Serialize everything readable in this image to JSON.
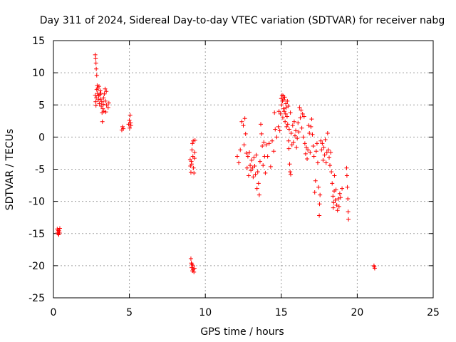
{
  "chart_data": {
    "type": "scatter",
    "title": "Day 311 of 2024, Sidereal Day-to-day VTEC variation (SDTVAR) for receiver nabg",
    "xlabel": "GPS time / hours",
    "ylabel": "SDTVAR / TECUs",
    "xlim": [
      0,
      25
    ],
    "ylim": [
      -25,
      15
    ],
    "xticks": [
      0,
      5,
      10,
      15,
      20,
      25
    ],
    "yticks": [
      -25,
      -20,
      -15,
      -10,
      -5,
      0,
      5,
      10,
      15
    ],
    "xtick_labels": [
      "0",
      "5",
      "10",
      "15",
      "20",
      "25"
    ],
    "ytick_labels": [
      "-25",
      "-20",
      "-15",
      "-10",
      "-5",
      "0",
      "5",
      "10",
      "15"
    ],
    "grid": true,
    "marker": "+",
    "color": "#ff0000",
    "series": [
      {
        "name": "SDTVAR",
        "points": [
          [
            0.25,
            -14.3
          ],
          [
            0.27,
            -14.8
          ],
          [
            0.3,
            -15.0
          ],
          [
            0.32,
            -14.5
          ],
          [
            0.35,
            -15.2
          ],
          [
            0.38,
            -14.6
          ],
          [
            0.4,
            -14.9
          ],
          [
            0.42,
            -14.2
          ],
          [
            2.75,
            12.8
          ],
          [
            2.78,
            12.2
          ],
          [
            2.8,
            11.5
          ],
          [
            2.82,
            10.6
          ],
          [
            2.85,
            9.6
          ],
          [
            2.75,
            6.5
          ],
          [
            2.78,
            5.5
          ],
          [
            2.8,
            4.9
          ],
          [
            2.82,
            6.1
          ],
          [
            2.85,
            7.4
          ],
          [
            2.88,
            8.0
          ],
          [
            2.9,
            6.8
          ],
          [
            2.92,
            7.6
          ],
          [
            2.95,
            5.8
          ],
          [
            2.98,
            6.4
          ],
          [
            3.0,
            7.9
          ],
          [
            3.02,
            5.2
          ],
          [
            3.05,
            6.6
          ],
          [
            3.08,
            7.2
          ],
          [
            3.1,
            5.9
          ],
          [
            3.12,
            6.8
          ],
          [
            3.15,
            4.8
          ],
          [
            3.18,
            5.5
          ],
          [
            3.2,
            3.8
          ],
          [
            3.22,
            2.4
          ],
          [
            3.25,
            4.4
          ],
          [
            3.28,
            5.1
          ],
          [
            3.3,
            6.1
          ],
          [
            3.32,
            4.0
          ],
          [
            3.35,
            6.7
          ],
          [
            3.4,
            7.5
          ],
          [
            3.42,
            5.6
          ],
          [
            3.45,
            3.9
          ],
          [
            3.48,
            7.1
          ],
          [
            3.5,
            5.0
          ],
          [
            3.6,
            4.6
          ],
          [
            3.65,
            5.3
          ],
          [
            4.5,
            1.1
          ],
          [
            4.55,
            1.6
          ],
          [
            4.6,
            1.3
          ],
          [
            4.95,
            2.0
          ],
          [
            5.0,
            2.6
          ],
          [
            5.02,
            1.4
          ],
          [
            5.05,
            3.4
          ],
          [
            5.08,
            2.2
          ],
          [
            5.1,
            1.8
          ],
          [
            9.0,
            -3.5
          ],
          [
            9.02,
            -4.5
          ],
          [
            9.05,
            -5.5
          ],
          [
            9.08,
            -3.8
          ],
          [
            9.1,
            -4.2
          ],
          [
            9.12,
            -2.0
          ],
          [
            9.15,
            -1.0
          ],
          [
            9.18,
            -3.0
          ],
          [
            9.2,
            -0.6
          ],
          [
            9.22,
            -4.8
          ],
          [
            9.25,
            -5.6
          ],
          [
            9.28,
            -3.3
          ],
          [
            9.3,
            -2.4
          ],
          [
            9.32,
            -0.5
          ],
          [
            9.05,
            -18.9
          ],
          [
            9.08,
            -19.6
          ],
          [
            9.1,
            -20.3
          ],
          [
            9.12,
            -19.8
          ],
          [
            9.15,
            -20.8
          ],
          [
            9.18,
            -20.0
          ],
          [
            9.2,
            -20.6
          ],
          [
            9.25,
            -21.0
          ],
          [
            9.28,
            -20.4
          ],
          [
            12.1,
            -3.0
          ],
          [
            12.2,
            -4.0
          ],
          [
            12.3,
            -2.0
          ],
          [
            12.4,
            2.4
          ],
          [
            12.5,
            1.8
          ],
          [
            12.55,
            -1.2
          ],
          [
            12.6,
            2.9
          ],
          [
            12.65,
            0.5
          ],
          [
            12.7,
            -2.5
          ],
          [
            12.75,
            -4.8
          ],
          [
            12.8,
            -3.0
          ],
          [
            12.85,
            -6.0
          ],
          [
            12.9,
            -2.4
          ],
          [
            12.95,
            -4.4
          ],
          [
            13.0,
            -5.2
          ],
          [
            13.05,
            -3.6
          ],
          [
            13.1,
            -4.8
          ],
          [
            13.15,
            -6.2
          ],
          [
            13.2,
            -3.2
          ],
          [
            13.25,
            -4.5
          ],
          [
            13.3,
            -5.8
          ],
          [
            13.35,
            -2.8
          ],
          [
            13.4,
            -8.0
          ],
          [
            13.45,
            -5.4
          ],
          [
            13.5,
            -7.2
          ],
          [
            13.55,
            -9.0
          ],
          [
            13.6,
            -3.8
          ],
          [
            13.65,
            2.0
          ],
          [
            13.7,
            0.5
          ],
          [
            13.75,
            -1.4
          ],
          [
            13.8,
            -4.4
          ],
          [
            13.85,
            -0.8
          ],
          [
            13.9,
            -3.0
          ],
          [
            13.95,
            -5.6
          ],
          [
            14.0,
            -1.2
          ],
          [
            14.1,
            -3.0
          ],
          [
            14.2,
            -1.0
          ],
          [
            14.3,
            -4.6
          ],
          [
            14.4,
            -0.6
          ],
          [
            14.5,
            -2.2
          ],
          [
            14.55,
            3.8
          ],
          [
            14.6,
            1.2
          ],
          [
            14.7,
            0.0
          ],
          [
            14.8,
            1.6
          ],
          [
            14.85,
            4.0
          ],
          [
            14.9,
            1.0
          ],
          [
            14.95,
            3.6
          ],
          [
            15.0,
            6.0
          ],
          [
            15.02,
            5.0
          ],
          [
            15.05,
            6.5
          ],
          [
            15.08,
            5.6
          ],
          [
            15.1,
            3.0
          ],
          [
            15.12,
            6.4
          ],
          [
            15.15,
            4.4
          ],
          [
            15.18,
            5.8
          ],
          [
            15.2,
            4.0
          ],
          [
            15.22,
            6.2
          ],
          [
            15.25,
            2.4
          ],
          [
            15.28,
            3.6
          ],
          [
            15.3,
            5.2
          ],
          [
            15.32,
            4.6
          ],
          [
            15.35,
            1.6
          ],
          [
            15.38,
            3.2
          ],
          [
            15.4,
            5.6
          ],
          [
            15.42,
            2.0
          ],
          [
            15.45,
            4.8
          ],
          [
            15.48,
            -0.6
          ],
          [
            15.5,
            -1.8
          ],
          [
            15.52,
            1.2
          ],
          [
            15.55,
            -4.2
          ],
          [
            15.58,
            -5.4
          ],
          [
            15.6,
            3.8
          ],
          [
            15.62,
            -5.8
          ],
          [
            15.65,
            0.6
          ],
          [
            15.7,
            -1.2
          ],
          [
            15.75,
            1.8
          ],
          [
            15.8,
            -0.8
          ],
          [
            15.85,
            2.4
          ],
          [
            15.9,
            0.2
          ],
          [
            15.95,
            1.0
          ],
          [
            16.0,
            -1.6
          ],
          [
            16.05,
            -0.2
          ],
          [
            16.1,
            2.2
          ],
          [
            16.15,
            0.8
          ],
          [
            16.2,
            4.6
          ],
          [
            16.25,
            3.0
          ],
          [
            16.3,
            4.2
          ],
          [
            16.35,
            1.4
          ],
          [
            16.4,
            3.6
          ],
          [
            16.45,
            0.0
          ],
          [
            16.5,
            3.2
          ],
          [
            16.55,
            -1.0
          ],
          [
            16.6,
            -2.6
          ],
          [
            16.65,
            -1.6
          ],
          [
            16.7,
            -3.4
          ],
          [
            16.75,
            -2.0
          ],
          [
            16.8,
            1.8
          ],
          [
            16.85,
            0.6
          ],
          [
            16.9,
            -2.4
          ],
          [
            16.95,
            1.6
          ],
          [
            17.0,
            2.8
          ],
          [
            17.05,
            0.4
          ],
          [
            17.1,
            -1.4
          ],
          [
            17.15,
            -3.0
          ],
          [
            17.2,
            -8.6
          ],
          [
            17.25,
            -6.8
          ],
          [
            17.3,
            -2.2
          ],
          [
            17.35,
            -1.0
          ],
          [
            17.4,
            -4.0
          ],
          [
            17.45,
            -7.8
          ],
          [
            17.5,
            -12.2
          ],
          [
            17.52,
            -10.4
          ],
          [
            17.55,
            -9.0
          ],
          [
            17.6,
            -0.6
          ],
          [
            17.65,
            -2.0
          ],
          [
            17.7,
            -1.0
          ],
          [
            17.75,
            -3.6
          ],
          [
            17.8,
            -1.6
          ],
          [
            17.85,
            -2.8
          ],
          [
            17.9,
            -0.4
          ],
          [
            17.95,
            -4.0
          ],
          [
            18.0,
            -2.4
          ],
          [
            18.05,
            0.6
          ],
          [
            18.1,
            -2.0
          ],
          [
            18.15,
            -3.2
          ],
          [
            18.2,
            -4.4
          ],
          [
            18.25,
            -2.4
          ],
          [
            18.3,
            -5.4
          ],
          [
            18.35,
            -7.2
          ],
          [
            18.4,
            -9.2
          ],
          [
            18.42,
            -11.0
          ],
          [
            18.45,
            -10.2
          ],
          [
            18.48,
            -8.4
          ],
          [
            18.5,
            -6.0
          ],
          [
            18.55,
            -9.8
          ],
          [
            18.6,
            -8.2
          ],
          [
            18.65,
            -10.6
          ],
          [
            18.7,
            -11.4
          ],
          [
            18.75,
            -9.6
          ],
          [
            18.8,
            -10.8
          ],
          [
            18.85,
            -8.8
          ],
          [
            18.9,
            -9.4
          ],
          [
            19.0,
            -8.0
          ],
          [
            19.3,
            -4.8
          ],
          [
            19.32,
            -6.0
          ],
          [
            19.35,
            -7.8
          ],
          [
            19.38,
            -9.6
          ],
          [
            19.4,
            -11.6
          ],
          [
            19.42,
            -12.8
          ],
          [
            21.1,
            -20.0
          ],
          [
            21.15,
            -20.4
          ],
          [
            21.12,
            -20.2
          ]
        ]
      }
    ]
  }
}
